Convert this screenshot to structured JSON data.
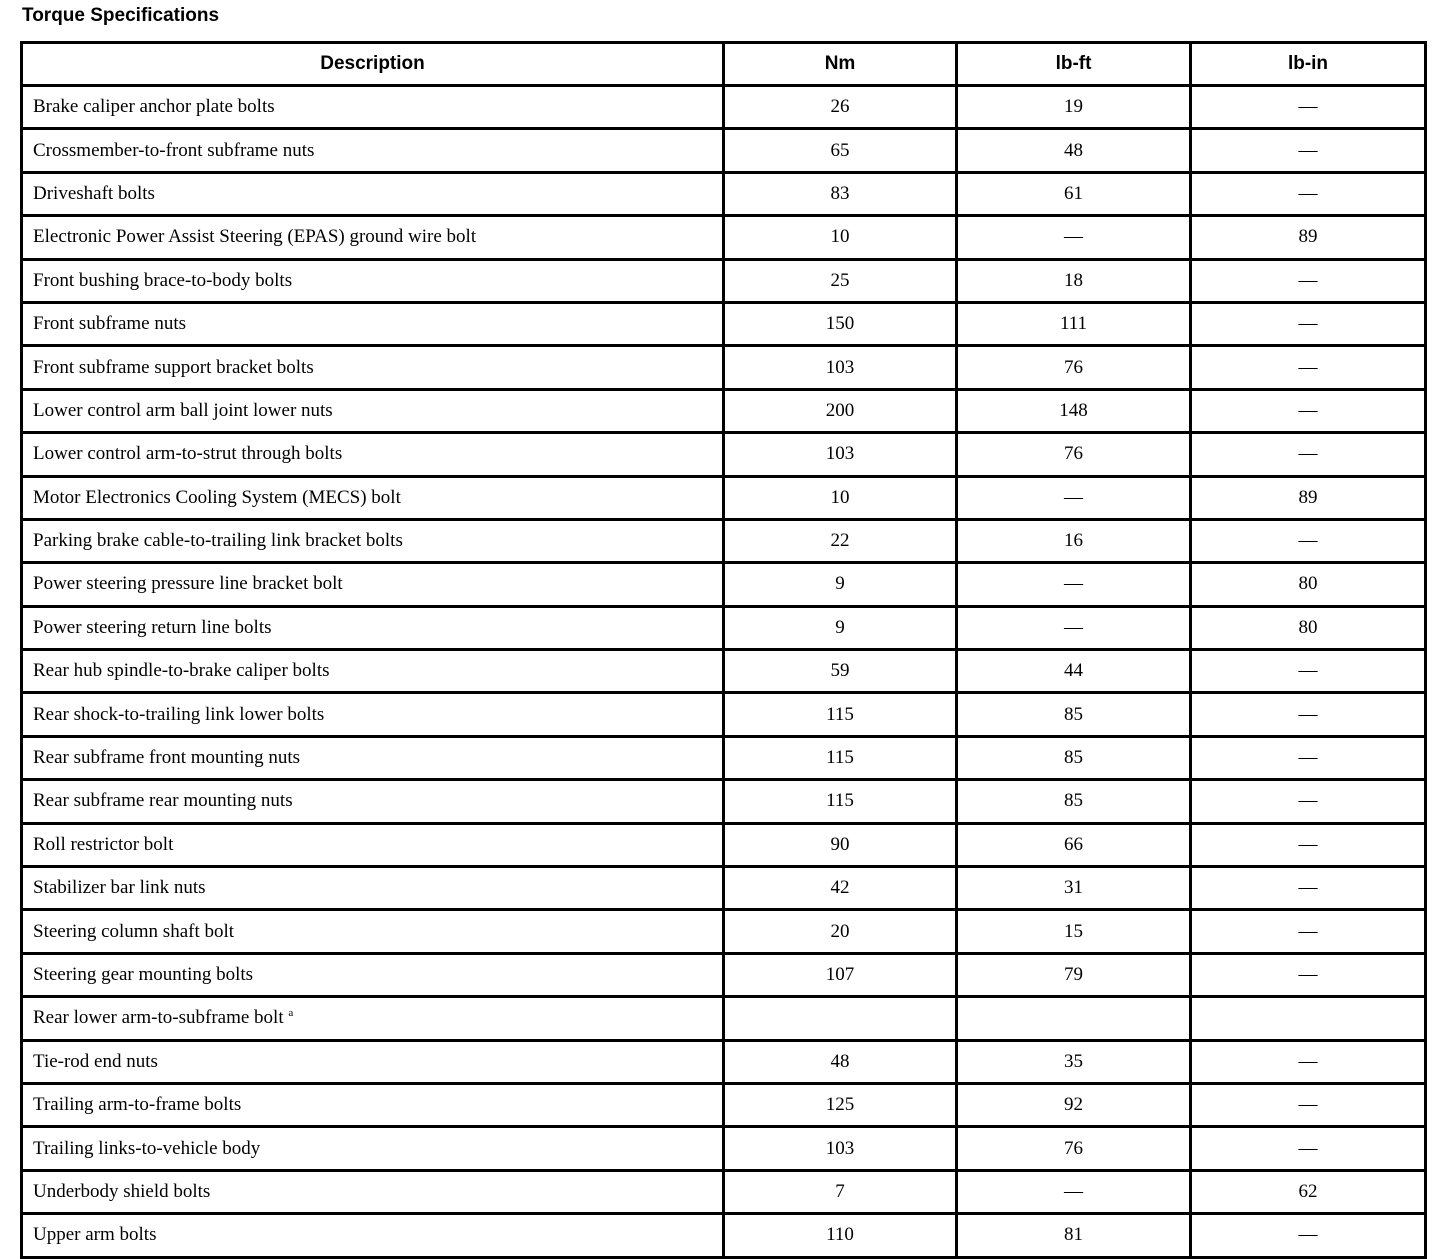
{
  "title": "Torque Specifications",
  "columns": [
    "Description",
    "Nm",
    "lb-ft",
    "lb-in"
  ],
  "rows": [
    {
      "desc": "Brake caliper anchor plate bolts",
      "nm": "26",
      "lbft": "19",
      "lbin": "—"
    },
    {
      "desc": "Crossmember-to-front subframe nuts",
      "nm": "65",
      "lbft": "48",
      "lbin": "—"
    },
    {
      "desc": "Driveshaft bolts",
      "nm": "83",
      "lbft": "61",
      "lbin": "—"
    },
    {
      "desc": "Electronic Power Assist Steering (EPAS) ground wire bolt",
      "nm": "10",
      "lbft": "—",
      "lbin": "89"
    },
    {
      "desc": "Front bushing brace-to-body bolts",
      "nm": "25",
      "lbft": "18",
      "lbin": "—"
    },
    {
      "desc": "Front subframe nuts",
      "nm": "150",
      "lbft": "111",
      "lbin": "—"
    },
    {
      "desc": "Front subframe support bracket bolts",
      "nm": "103",
      "lbft": "76",
      "lbin": "—"
    },
    {
      "desc": "Lower control arm ball joint lower nuts",
      "nm": "200",
      "lbft": "148",
      "lbin": "—"
    },
    {
      "desc": "Lower control arm-to-strut through bolts",
      "nm": "103",
      "lbft": "76",
      "lbin": "—"
    },
    {
      "desc": "Motor Electronics Cooling System (MECS) bolt",
      "nm": "10",
      "lbft": "—",
      "lbin": "89"
    },
    {
      "desc": "Parking brake cable-to-trailing link bracket bolts",
      "nm": "22",
      "lbft": "16",
      "lbin": "—"
    },
    {
      "desc": "Power steering pressure line bracket bolt",
      "nm": "9",
      "lbft": "—",
      "lbin": "80"
    },
    {
      "desc": "Power steering return line bolts",
      "nm": "9",
      "lbft": "—",
      "lbin": "80"
    },
    {
      "desc": "Rear hub spindle-to-brake caliper bolts",
      "nm": "59",
      "lbft": "44",
      "lbin": "—"
    },
    {
      "desc": "Rear shock-to-trailing link lower bolts",
      "nm": "115",
      "lbft": "85",
      "lbin": "—"
    },
    {
      "desc": "Rear subframe front mounting nuts",
      "nm": "115",
      "lbft": "85",
      "lbin": "—"
    },
    {
      "desc": "Rear subframe rear mounting nuts",
      "nm": "115",
      "lbft": "85",
      "lbin": "—"
    },
    {
      "desc": "Roll restrictor bolt",
      "nm": "90",
      "lbft": "66",
      "lbin": "—"
    },
    {
      "desc": "Stabilizer bar link nuts",
      "nm": "42",
      "lbft": "31",
      "lbin": "—"
    },
    {
      "desc": "Steering column shaft bolt",
      "nm": "20",
      "lbft": "15",
      "lbin": "—"
    },
    {
      "desc": "Steering gear mounting bolts",
      "nm": "107",
      "lbft": "79",
      "lbin": "—"
    },
    {
      "desc": "Rear lower arm-to-subframe bolt",
      "sup": "a",
      "nm": "",
      "lbft": "",
      "lbin": ""
    },
    {
      "desc": "Tie-rod end nuts",
      "nm": "48",
      "lbft": "35",
      "lbin": "—"
    },
    {
      "desc": "Trailing arm-to-frame bolts",
      "nm": "125",
      "lbft": "92",
      "lbin": "—"
    },
    {
      "desc": "Trailing links-to-vehicle body",
      "nm": "103",
      "lbft": "76",
      "lbin": "—"
    },
    {
      "desc": "Underbody shield bolts",
      "nm": "7",
      "lbft": "—",
      "lbin": "62"
    },
    {
      "desc": "Upper arm bolts",
      "nm": "110",
      "lbft": "81",
      "lbin": "—"
    }
  ]
}
